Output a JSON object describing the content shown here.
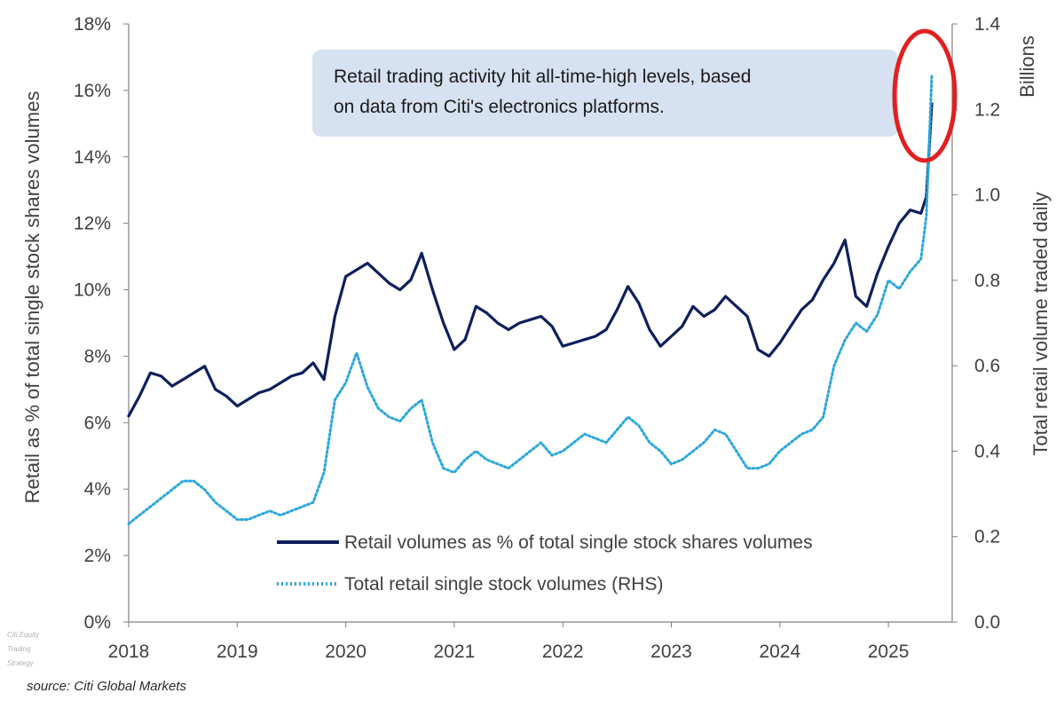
{
  "chart_data": {
    "type": "line",
    "x_range": [
      2018.0,
      2025.45
    ],
    "x_ticks": [
      2018,
      2019,
      2020,
      2021,
      2022,
      2023,
      2024,
      2025
    ],
    "x_tick_labels": [
      "2018",
      "2019",
      "2020",
      "2021",
      "2022",
      "2023",
      "2024",
      "2025"
    ],
    "left_axis": {
      "label": "Retail as % of total single stock shares volumes",
      "ylim": [
        0,
        18
      ],
      "ticks": [
        0,
        2,
        4,
        6,
        8,
        10,
        12,
        14,
        16,
        18
      ],
      "tick_labels": [
        "0%",
        "2%",
        "4%",
        "6%",
        "8%",
        "10%",
        "12%",
        "14%",
        "16%",
        "18%"
      ]
    },
    "right_axis": {
      "label": "Total retail volume traded daily",
      "unit_label": "Billions",
      "ylim": [
        0,
        1.4
      ],
      "ticks": [
        0,
        0.2,
        0.4,
        0.6,
        0.8,
        1.0,
        1.2,
        1.4
      ],
      "tick_labels": [
        "0.0",
        "0.2",
        "0.4",
        "0.6",
        "0.8",
        "1.0",
        "1.2",
        "1.4"
      ]
    },
    "series": [
      {
        "name": "Retail volumes as % of total single stock shares volumes",
        "axis": "left",
        "color": "#0d1f5c",
        "style": "solid",
        "x": [
          2018.0,
          2018.1,
          2018.2,
          2018.3,
          2018.4,
          2018.5,
          2018.6,
          2018.7,
          2018.8,
          2018.9,
          2019.0,
          2019.1,
          2019.2,
          2019.3,
          2019.4,
          2019.5,
          2019.6,
          2019.7,
          2019.8,
          2019.9,
          2020.0,
          2020.1,
          2020.2,
          2020.3,
          2020.4,
          2020.5,
          2020.6,
          2020.7,
          2020.8,
          2020.9,
          2021.0,
          2021.1,
          2021.2,
          2021.3,
          2021.4,
          2021.5,
          2021.6,
          2021.7,
          2021.8,
          2021.9,
          2022.0,
          2022.1,
          2022.2,
          2022.3,
          2022.4,
          2022.5,
          2022.6,
          2022.7,
          2022.8,
          2022.9,
          2023.0,
          2023.1,
          2023.2,
          2023.3,
          2023.4,
          2023.5,
          2023.6,
          2023.7,
          2023.8,
          2023.9,
          2024.0,
          2024.1,
          2024.2,
          2024.3,
          2024.4,
          2024.5,
          2024.6,
          2024.7,
          2024.8,
          2024.9,
          2025.0,
          2025.1,
          2025.2,
          2025.3,
          2025.35,
          2025.4
        ],
        "values": [
          6.2,
          6.8,
          7.5,
          7.4,
          7.1,
          7.3,
          7.5,
          7.7,
          7.0,
          6.8,
          6.5,
          6.7,
          6.9,
          7.0,
          7.2,
          7.4,
          7.5,
          7.8,
          7.3,
          9.2,
          10.4,
          10.6,
          10.8,
          10.5,
          10.2,
          10.0,
          10.3,
          11.1,
          10.0,
          9.0,
          8.2,
          8.5,
          9.5,
          9.3,
          9.0,
          8.8,
          9.0,
          9.1,
          9.2,
          8.9,
          8.3,
          8.4,
          8.5,
          8.6,
          8.8,
          9.4,
          10.1,
          9.6,
          8.8,
          8.3,
          8.6,
          8.9,
          9.5,
          9.2,
          9.4,
          9.8,
          9.5,
          9.2,
          8.2,
          8.0,
          8.4,
          8.9,
          9.4,
          9.7,
          10.3,
          10.8,
          11.5,
          9.8,
          9.5,
          10.5,
          11.3,
          12.0,
          12.4,
          12.3,
          12.8,
          15.6
        ]
      },
      {
        "name": "Total retail single stock volumes (RHS)",
        "axis": "right",
        "color": "#2aa6dc",
        "style": "dotted",
        "x": [
          2018.0,
          2018.1,
          2018.2,
          2018.3,
          2018.4,
          2018.5,
          2018.6,
          2018.7,
          2018.8,
          2018.9,
          2019.0,
          2019.1,
          2019.2,
          2019.3,
          2019.4,
          2019.5,
          2019.6,
          2019.7,
          2019.8,
          2019.9,
          2020.0,
          2020.1,
          2020.2,
          2020.3,
          2020.4,
          2020.5,
          2020.6,
          2020.7,
          2020.8,
          2020.9,
          2021.0,
          2021.1,
          2021.2,
          2021.3,
          2021.4,
          2021.5,
          2021.6,
          2021.7,
          2021.8,
          2021.9,
          2022.0,
          2022.1,
          2022.2,
          2022.3,
          2022.4,
          2022.5,
          2022.6,
          2022.7,
          2022.8,
          2022.9,
          2023.0,
          2023.1,
          2023.2,
          2023.3,
          2023.4,
          2023.5,
          2023.6,
          2023.7,
          2023.8,
          2023.9,
          2024.0,
          2024.1,
          2024.2,
          2024.3,
          2024.4,
          2024.5,
          2024.6,
          2024.7,
          2024.8,
          2024.9,
          2025.0,
          2025.1,
          2025.2,
          2025.3,
          2025.35,
          2025.4
        ],
        "values": [
          0.23,
          0.25,
          0.27,
          0.29,
          0.31,
          0.33,
          0.33,
          0.31,
          0.28,
          0.26,
          0.24,
          0.24,
          0.25,
          0.26,
          0.25,
          0.26,
          0.27,
          0.28,
          0.35,
          0.52,
          0.56,
          0.63,
          0.55,
          0.5,
          0.48,
          0.47,
          0.5,
          0.52,
          0.42,
          0.36,
          0.35,
          0.38,
          0.4,
          0.38,
          0.37,
          0.36,
          0.38,
          0.4,
          0.42,
          0.39,
          0.4,
          0.42,
          0.44,
          0.43,
          0.42,
          0.45,
          0.48,
          0.46,
          0.42,
          0.4,
          0.37,
          0.38,
          0.4,
          0.42,
          0.45,
          0.44,
          0.4,
          0.36,
          0.36,
          0.37,
          0.4,
          0.42,
          0.44,
          0.45,
          0.48,
          0.6,
          0.66,
          0.7,
          0.68,
          0.72,
          0.8,
          0.78,
          0.82,
          0.85,
          0.95,
          1.28
        ]
      }
    ],
    "legend": {
      "placement": "bottom-center",
      "items": [
        "Retail volumes as % of total single stock shares volumes",
        "Total retail single stock volumes (RHS)"
      ]
    },
    "annotations": {
      "callout_lines": [
        "Retail trading activity hit all-time-high levels, based",
        "on data from Citi's electronics platforms."
      ],
      "highlight": "red ellipse around latest peak"
    },
    "colors": {
      "pct_line": "#0d1f5c",
      "volume_line": "#2aa6dc",
      "callout_bg": "#d6e1f1",
      "highlight": "#e02020",
      "axis": "#7f7f7f"
    }
  },
  "watermark_lines": [
    "Citi Equity",
    "Trading",
    "Strategy"
  ],
  "source": "source: Citi Global Markets"
}
